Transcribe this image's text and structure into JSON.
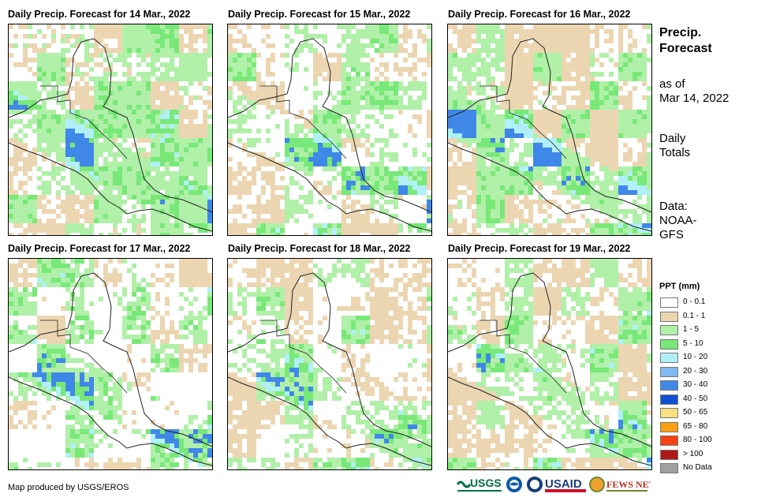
{
  "panels": [
    {
      "title": "Daily Precip. Forecast for 14 Mar., 2022"
    },
    {
      "title": "Daily Precip. Forecast for 15 Mar., 2022"
    },
    {
      "title": "Daily Precip. Forecast for 16 Mar., 2022"
    },
    {
      "title": "Daily Precip. Forecast for 17 Mar., 2022"
    },
    {
      "title": "Daily Precip. Forecast for 18 Mar., 2022"
    },
    {
      "title": "Daily Precip. Forecast for 19 Mar., 2022"
    }
  ],
  "side": {
    "title_line1": "Precip.",
    "title_line2": "Forecast",
    "asof_line1": "as of",
    "asof_line2": "Mar 14, 2022",
    "totals_line1": "Daily",
    "totals_line2": "Totals",
    "data_line1": "Data:",
    "data_line2": "NOAA-",
    "data_line3": "GFS"
  },
  "legend": {
    "title": "PPT (mm)",
    "items": [
      {
        "label": "0 - 0.1",
        "color": "#ffffff"
      },
      {
        "label": "0.1 - 1",
        "color": "#ecd6b2"
      },
      {
        "label": "1 - 5",
        "color": "#b0f0a8"
      },
      {
        "label": "5 - 10",
        "color": "#78e878"
      },
      {
        "label": "10 - 20",
        "color": "#b0f0f8"
      },
      {
        "label": "20 - 30",
        "color": "#80b8f0"
      },
      {
        "label": "30 - 40",
        "color": "#4088e8"
      },
      {
        "label": "40 - 50",
        "color": "#1050d0"
      },
      {
        "label": "50 - 65",
        "color": "#fae080"
      },
      {
        "label": "65 - 80",
        "color": "#f8a010"
      },
      {
        "label": "80 - 100",
        "color": "#f84010"
      },
      {
        "label": "> 100",
        "color": "#b01818"
      },
      {
        "label": "No Data",
        "color": "#a0a0a0"
      }
    ]
  },
  "footer": "Map produced by USGS/EROS",
  "logos": {
    "usgs": "USGS",
    "usaid": "USAID",
    "fewsnet": "FEWS NET"
  }
}
